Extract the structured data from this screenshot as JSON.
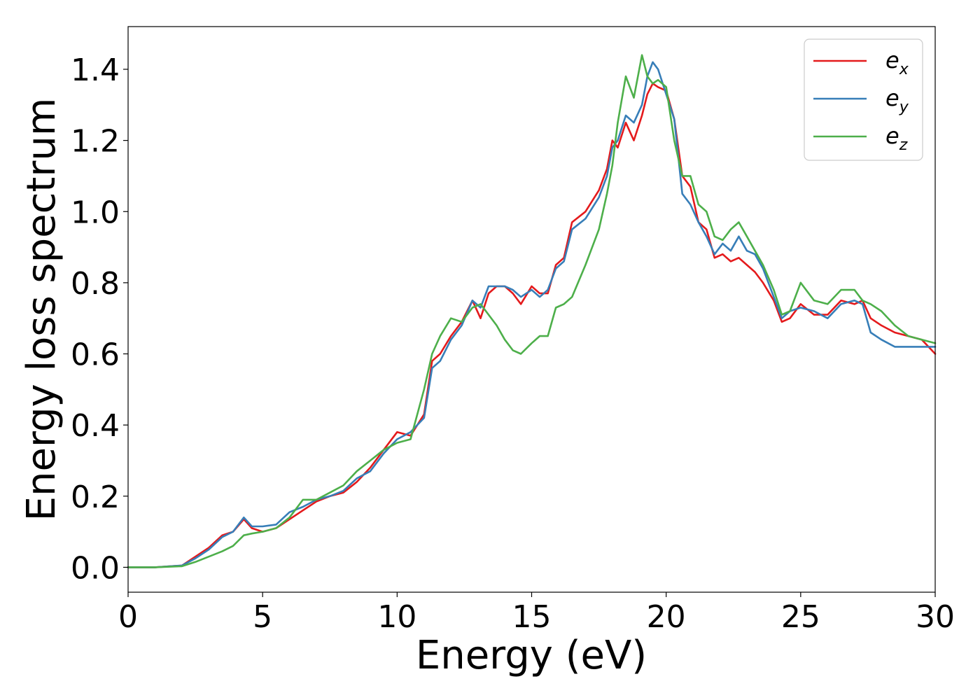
{
  "chart_data": {
    "type": "line",
    "xlabel": "Energy (eV)",
    "ylabel": "Energy loss spectrum",
    "xlim": [
      0,
      30
    ],
    "ylim": [
      -0.07,
      1.52
    ],
    "xticks": [
      0,
      5,
      10,
      15,
      20,
      25,
      30
    ],
    "xtick_labels": [
      "0",
      "5",
      "10",
      "15",
      "20",
      "25",
      "30"
    ],
    "yticks": [
      0.0,
      0.2,
      0.4,
      0.6,
      0.8,
      1.0,
      1.2,
      1.4
    ],
    "ytick_labels": [
      "0.0",
      "0.2",
      "0.4",
      "0.6",
      "0.8",
      "1.0",
      "1.2",
      "1.4"
    ],
    "grid": false,
    "legend_position": "top-right",
    "series": [
      {
        "name": "e_x",
        "legend_base": "e",
        "legend_sub": "x",
        "color": "#e41a1c",
        "x": [
          0,
          1,
          2,
          2.5,
          3,
          3.5,
          3.9,
          4.3,
          4.6,
          5,
          5.5,
          6,
          6.5,
          7,
          7.5,
          8,
          8.5,
          9,
          9.5,
          10,
          10.5,
          11,
          11.3,
          11.6,
          12,
          12.4,
          12.8,
          13.1,
          13.4,
          13.7,
          14,
          14.3,
          14.6,
          15,
          15.3,
          15.6,
          15.9,
          16.2,
          16.5,
          17,
          17.5,
          17.8,
          18,
          18.2,
          18.5,
          18.8,
          19.1,
          19.3,
          19.5,
          19.7,
          20,
          20.3,
          20.6,
          20.9,
          21.2,
          21.5,
          21.8,
          22.1,
          22.4,
          22.7,
          23,
          23.3,
          23.6,
          24,
          24.3,
          24.6,
          25,
          25.5,
          26,
          26.5,
          27,
          27.3,
          27.6,
          28,
          28.5,
          29,
          29.5,
          30
        ],
        "y": [
          0.0,
          0.0,
          0.005,
          0.03,
          0.055,
          0.09,
          0.1,
          0.135,
          0.11,
          0.1,
          0.11,
          0.135,
          0.16,
          0.185,
          0.2,
          0.21,
          0.24,
          0.28,
          0.33,
          0.38,
          0.37,
          0.43,
          0.58,
          0.6,
          0.65,
          0.69,
          0.75,
          0.7,
          0.77,
          0.79,
          0.79,
          0.77,
          0.74,
          0.79,
          0.77,
          0.77,
          0.85,
          0.87,
          0.97,
          1.0,
          1.06,
          1.12,
          1.2,
          1.18,
          1.25,
          1.2,
          1.27,
          1.33,
          1.36,
          1.35,
          1.34,
          1.26,
          1.1,
          1.07,
          0.97,
          0.95,
          0.87,
          0.88,
          0.86,
          0.87,
          0.85,
          0.83,
          0.8,
          0.75,
          0.69,
          0.7,
          0.74,
          0.71,
          0.71,
          0.75,
          0.74,
          0.75,
          0.7,
          0.68,
          0.66,
          0.65,
          0.64,
          0.6
        ]
      },
      {
        "name": "e_y",
        "legend_base": "e",
        "legend_sub": "y",
        "color": "#377eb8",
        "x": [
          0,
          1,
          2,
          2.5,
          3,
          3.5,
          3.9,
          4.3,
          4.6,
          5,
          5.5,
          6,
          6.5,
          7,
          7.5,
          8,
          8.5,
          9,
          9.5,
          10,
          10.5,
          11,
          11.3,
          11.6,
          12,
          12.4,
          12.8,
          13.1,
          13.4,
          13.7,
          14,
          14.3,
          14.6,
          15,
          15.3,
          15.6,
          15.9,
          16.2,
          16.5,
          17,
          17.5,
          17.8,
          18,
          18.2,
          18.5,
          18.8,
          19.1,
          19.3,
          19.5,
          19.7,
          20,
          20.3,
          20.6,
          20.9,
          21.2,
          21.5,
          21.8,
          22.1,
          22.4,
          22.7,
          23,
          23.3,
          23.6,
          24,
          24.3,
          24.6,
          25,
          25.5,
          26,
          26.5,
          27,
          27.3,
          27.6,
          28,
          28.5,
          29,
          29.5,
          30
        ],
        "y": [
          0.0,
          0.0,
          0.005,
          0.025,
          0.05,
          0.085,
          0.1,
          0.14,
          0.115,
          0.115,
          0.12,
          0.155,
          0.17,
          0.19,
          0.2,
          0.215,
          0.25,
          0.27,
          0.32,
          0.36,
          0.38,
          0.42,
          0.56,
          0.58,
          0.64,
          0.68,
          0.75,
          0.73,
          0.79,
          0.79,
          0.79,
          0.78,
          0.76,
          0.78,
          0.76,
          0.78,
          0.84,
          0.86,
          0.95,
          0.98,
          1.04,
          1.1,
          1.18,
          1.2,
          1.27,
          1.25,
          1.3,
          1.38,
          1.42,
          1.4,
          1.33,
          1.26,
          1.05,
          1.02,
          0.97,
          0.93,
          0.88,
          0.91,
          0.89,
          0.93,
          0.89,
          0.88,
          0.84,
          0.76,
          0.7,
          0.72,
          0.73,
          0.72,
          0.7,
          0.74,
          0.75,
          0.74,
          0.66,
          0.64,
          0.62,
          0.62,
          0.62,
          0.62
        ]
      },
      {
        "name": "e_z",
        "legend_base": "e",
        "legend_sub": "z",
        "color": "#4daf4a",
        "x": [
          0,
          1,
          2,
          2.5,
          3,
          3.5,
          3.9,
          4.3,
          4.6,
          5,
          5.5,
          6,
          6.5,
          7,
          7.5,
          8,
          8.5,
          9,
          9.5,
          10,
          10.5,
          11,
          11.3,
          11.6,
          12,
          12.4,
          12.8,
          13.1,
          13.4,
          13.7,
          14,
          14.3,
          14.6,
          15,
          15.3,
          15.6,
          15.9,
          16.2,
          16.5,
          17,
          17.5,
          17.8,
          18,
          18.2,
          18.5,
          18.8,
          19.1,
          19.3,
          19.5,
          19.7,
          20,
          20.3,
          20.6,
          20.9,
          21.2,
          21.5,
          21.8,
          22.1,
          22.4,
          22.7,
          23,
          23.3,
          23.6,
          24,
          24.3,
          24.6,
          25,
          25.5,
          26,
          26.5,
          27,
          27.3,
          27.6,
          28,
          28.5,
          29,
          29.5,
          30
        ],
        "y": [
          0.0,
          0.0,
          0.003,
          0.015,
          0.03,
          0.045,
          0.06,
          0.09,
          0.095,
          0.1,
          0.11,
          0.14,
          0.19,
          0.19,
          0.21,
          0.23,
          0.27,
          0.3,
          0.33,
          0.35,
          0.36,
          0.5,
          0.6,
          0.65,
          0.7,
          0.69,
          0.73,
          0.74,
          0.71,
          0.68,
          0.64,
          0.61,
          0.6,
          0.63,
          0.65,
          0.65,
          0.73,
          0.74,
          0.76,
          0.85,
          0.95,
          1.05,
          1.13,
          1.25,
          1.38,
          1.32,
          1.44,
          1.38,
          1.36,
          1.37,
          1.35,
          1.2,
          1.1,
          1.1,
          1.02,
          1.0,
          0.93,
          0.92,
          0.95,
          0.97,
          0.93,
          0.89,
          0.85,
          0.78,
          0.71,
          0.72,
          0.8,
          0.75,
          0.74,
          0.78,
          0.78,
          0.75,
          0.74,
          0.72,
          0.68,
          0.65,
          0.64,
          0.63
        ]
      }
    ]
  }
}
